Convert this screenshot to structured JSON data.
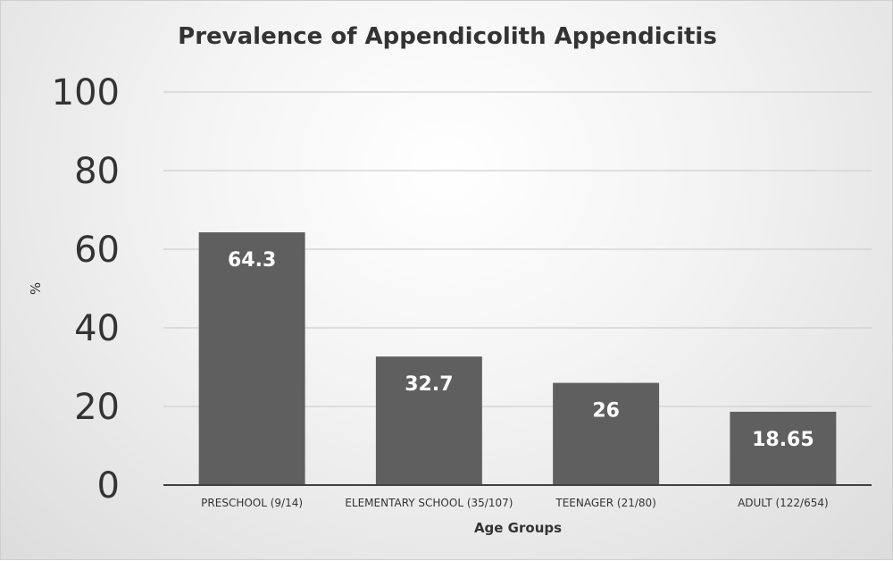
{
  "chart_data": {
    "type": "bar",
    "title": "Prevalence of Appendicolith Appendicitis",
    "xlabel": "Age Groups",
    "ylabel": "%",
    "categories": [
      "PRESCHOOL (9/14)",
      "ELEMENTARY SCHOOL (35/107)",
      "TEENAGER (21/80)",
      "ADULT (122/654)"
    ],
    "values": [
      64.3,
      32.7,
      26,
      18.65
    ],
    "data_labels": [
      "64.3",
      "32.7",
      "26",
      "18.65"
    ],
    "ylim": [
      0,
      100
    ],
    "yticks": [
      0,
      20,
      40,
      60,
      80,
      100
    ],
    "grid": true,
    "legend": "none",
    "bar_color": "#5f5f5f"
  }
}
